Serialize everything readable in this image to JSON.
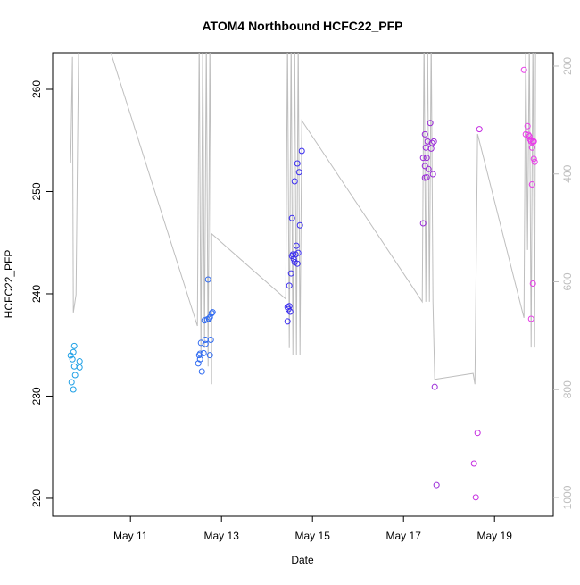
{
  "chart_data": {
    "type": "scatter",
    "title": "ATOM4 Northbound HCFC22_PFP",
    "xlabel": "Date",
    "ylabel": "HCFC22_PFP",
    "xlim": [
      9.29,
      20.29
    ],
    "xticks": [
      {
        "value": 11,
        "label": "May 11"
      },
      {
        "value": 13,
        "label": "May 13"
      },
      {
        "value": 15,
        "label": "May 15"
      },
      {
        "value": 17,
        "label": "May 17"
      },
      {
        "value": 19,
        "label": "May 19"
      }
    ],
    "ylim": [
      218.25,
      263.58
    ],
    "yticks": [
      220,
      230,
      240,
      250,
      260
    ],
    "y2lim": [
      1034.8,
      175.2
    ],
    "y2ticks": [
      200,
      400,
      600,
      800,
      1000
    ],
    "series": [
      {
        "color": "#1ea0e6",
        "x": [
          9.686,
          9.745,
          9.765,
          9.725,
          9.765,
          9.784,
          9.706,
          9.745,
          9.882,
          9.882
        ],
        "values": [
          233.97,
          234.3,
          234.9,
          233.6,
          232.9,
          232.05,
          231.35,
          230.65,
          233.4,
          232.8
        ]
      },
      {
        "color": "#2f6af0",
        "x": [
          12.49,
          12.51,
          12.53,
          12.549,
          12.53,
          12.569,
          12.608,
          12.647,
          12.647,
          12.627,
          12.686,
          12.725,
          12.745,
          12.784,
          12.804,
          12.765,
          12.745,
          12.706
        ],
        "values": [
          233.2,
          234.0,
          233.6,
          235.2,
          234.15,
          232.4,
          234.2,
          235.5,
          235.1,
          237.4,
          237.5,
          237.55,
          237.7,
          238.1,
          238.2,
          235.5,
          234.0,
          241.4
        ]
      },
      {
        "color": "#3a2cf0",
        "x": [
          14.451,
          14.471,
          14.49,
          14.51,
          14.49,
          14.53,
          14.549,
          14.588,
          14.627,
          14.647,
          14.686,
          14.667,
          14.549,
          14.725,
          14.608,
          14.667,
          14.706,
          14.765,
          14.451,
          14.569,
          14.608
        ],
        "values": [
          237.3,
          238.5,
          238.8,
          238.25,
          240.8,
          242.0,
          243.7,
          243.4,
          243.85,
          244.7,
          244.0,
          242.95,
          247.4,
          246.7,
          251.0,
          252.75,
          251.9,
          253.97,
          238.7,
          243.85,
          243.1
        ]
      },
      {
        "color": "#9a2ad8",
        "x": [
          17.431,
          17.471,
          17.49,
          17.529,
          17.588,
          17.627,
          17.667,
          17.608,
          17.51,
          17.471,
          17.549,
          17.647,
          17.471,
          17.51,
          17.686,
          17.725,
          17.431
        ],
        "values": [
          246.9,
          255.6,
          254.3,
          254.9,
          256.7,
          254.75,
          254.9,
          254.2,
          253.3,
          252.5,
          252.2,
          251.7,
          251.35,
          251.4,
          230.9,
          221.3,
          253.3
        ]
      },
      {
        "color": "#c42ae0",
        "x": [
          18.667,
          18.627,
          18.549,
          18.588
        ],
        "values": [
          256.1,
          226.4,
          223.4,
          220.1
        ]
      },
      {
        "color": "#e83ce8",
        "x": [
          19.647,
          19.725,
          19.745,
          19.765,
          19.784,
          19.804,
          19.824,
          19.843,
          19.863,
          19.882,
          19.824,
          19.843,
          19.804,
          19.686,
          19.863
        ],
        "values": [
          261.9,
          256.4,
          255.55,
          255.4,
          255.1,
          254.9,
          254.3,
          254.9,
          253.2,
          252.9,
          250.7,
          241.0,
          237.55,
          255.6,
          254.9
        ]
      },
      {
        "color": "#bebebe",
        "axis": "y2",
        "x": [
          9.686,
          9.725,
          9.745,
          9.804,
          9.863,
          10.451,
          12.471,
          12.51,
          12.549,
          12.588,
          12.627,
          12.667,
          12.706,
          12.745,
          12.784,
          12.784,
          14.412,
          14.451,
          14.49,
          14.53,
          14.569,
          14.608,
          14.647,
          14.686,
          14.725,
          14.765,
          17.412,
          17.451,
          17.49,
          17.529,
          17.569,
          17.608,
          17.647,
          17.686,
          18.529,
          18.569,
          18.627,
          19.647,
          19.686,
          19.725,
          19.765,
          19.804,
          19.843,
          19.882,
          19.902
        ],
        "values": [
          380,
          183,
          657,
          624,
          144,
          144,
          682,
          144,
          740,
          144,
          723,
          144,
          757,
          144,
          790,
          511,
          632,
          144,
          723,
          144,
          735,
          144,
          735,
          144,
          735,
          301,
          637,
          144,
          637,
          144,
          637,
          144,
          637,
          781,
          770,
          790,
          326,
          667,
          144,
          541,
          144,
          722,
          144,
          722,
          144
        ]
      }
    ]
  }
}
